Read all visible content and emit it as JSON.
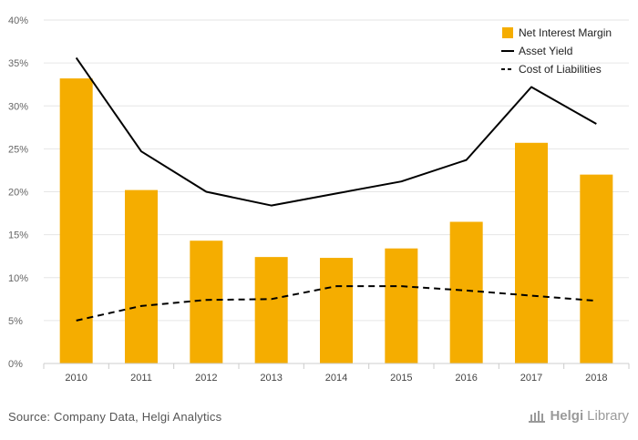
{
  "chart_data": {
    "type": "bar",
    "categories": [
      "2010",
      "2011",
      "2012",
      "2013",
      "2014",
      "2015",
      "2016",
      "2017",
      "2018"
    ],
    "series": [
      {
        "name": "Net Interest Margin",
        "kind": "bar",
        "color": "#F5AD00",
        "values": [
          33.2,
          20.2,
          14.3,
          12.4,
          12.3,
          13.4,
          16.5,
          25.7,
          22.0
        ]
      },
      {
        "name": "Asset Yield",
        "kind": "line",
        "style": "solid",
        "color": "#000000",
        "values": [
          35.6,
          24.7,
          20.0,
          18.4,
          19.8,
          21.2,
          23.7,
          32.2,
          27.9
        ]
      },
      {
        "name": "Cost of Liabilities",
        "kind": "line",
        "style": "dashed",
        "color": "#000000",
        "values": [
          5.0,
          6.7,
          7.4,
          7.5,
          9.0,
          9.0,
          8.5,
          7.9,
          7.3
        ]
      }
    ],
    "yticks": [
      "0%",
      "5%",
      "10%",
      "15%",
      "20%",
      "25%",
      "30%",
      "35%",
      "40%"
    ],
    "ylim": [
      0,
      40
    ],
    "grid": true,
    "legend_position": "top-right"
  },
  "footer": {
    "source": "Source: Company Data, Helgi Analytics",
    "logo_text": "Helgi",
    "logo_text2": "Library"
  }
}
